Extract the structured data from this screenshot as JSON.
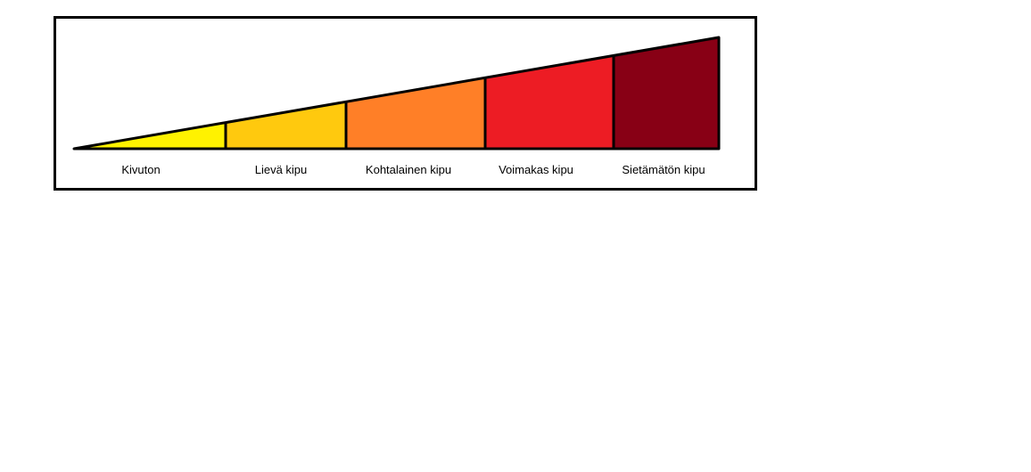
{
  "pain_scale": {
    "levels": [
      {
        "label": "Kivuton",
        "color": "#FFF200"
      },
      {
        "label": "Lievä kipu",
        "color": "#FFC90E"
      },
      {
        "label": "Kohtalainen kipu",
        "color": "#FF7F27"
      },
      {
        "label": "Voimakas kipu",
        "color": "#ED1C24"
      },
      {
        "label": "Sietämätön kipu",
        "color": "#880015"
      }
    ],
    "outline_color": "#000000"
  }
}
